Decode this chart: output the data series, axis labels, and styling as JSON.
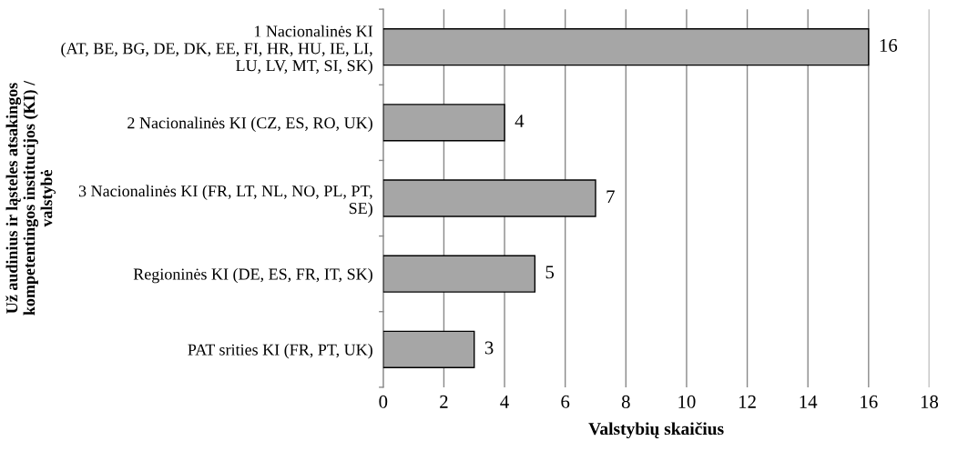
{
  "chart_data": {
    "type": "bar",
    "orientation": "horizontal",
    "categories": [
      "1 Nacionalinės KI\n(AT, BE, BG, DE, DK, EE, FI, HR, HU, IE, LI,\nLU, LV, MT, SI, SK)",
      "2 Nacionalinės KI (CZ, ES, RO, UK)",
      "3 Nacionalinės KI (FR, LT, NL, NO, PL, PT,\nSE)",
      "Regioninės KI (DE, ES, FR, IT, SK)",
      "PAT srities KI (FR, PT, UK)"
    ],
    "values": [
      16,
      4,
      7,
      5,
      3
    ],
    "color": "#a6a6a6",
    "xlabel": "Valstybių skaičius",
    "ylabel": "Už audinius ir ląsteles atsakingos\nkompetentingos institucijos (KI) /\nvalstybė",
    "xlim": [
      0,
      18
    ],
    "xticks": [
      0,
      2,
      4,
      6,
      8,
      10,
      12,
      14,
      16,
      18
    ],
    "grid": "x",
    "data_labels": true,
    "legend": false
  }
}
